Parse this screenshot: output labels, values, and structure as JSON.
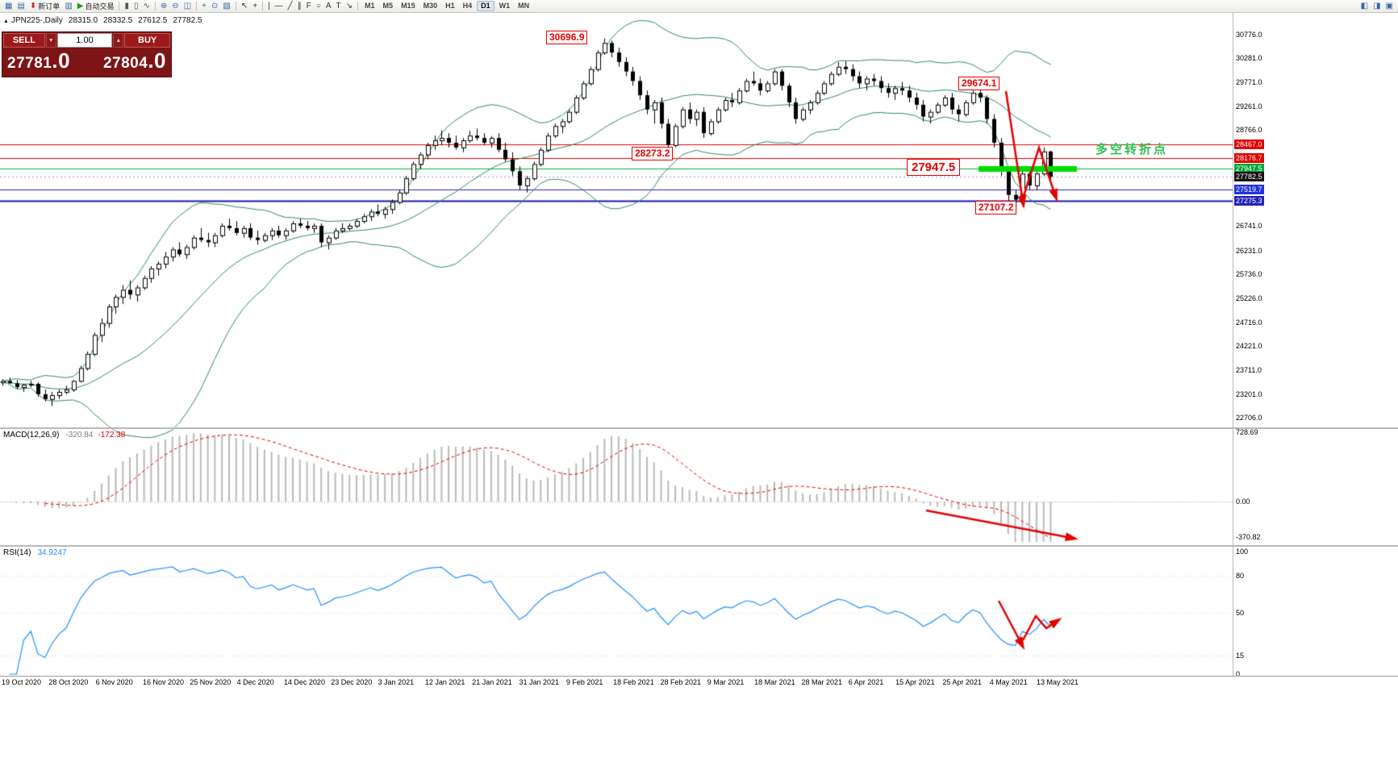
{
  "header": {
    "icon": "▲",
    "symbol": "JPN225-,Daily",
    "open": "28315.0",
    "high": "28332.5",
    "low": "27612.5",
    "close": "27782.5"
  },
  "trade": {
    "sell_label": "SELL",
    "buy_label": "BUY",
    "volume": "1.00",
    "vol_down_glyph": "▼",
    "vol_up_glyph": "▲",
    "sell_price_int": "27781",
    "sell_price_frac": ".0",
    "buy_price_int": "27804",
    "buy_price_frac": ".0"
  },
  "annotations": {
    "peak": "30696.9",
    "swing_high": "29674.1",
    "support": "28273.2",
    "key_level": "27947.5",
    "crash_low": "27107.2",
    "turning_point": "多空转折点"
  },
  "macd_label": {
    "name": "MACD(12,26,9)",
    "main": "-320.84",
    "signal": "-172.38"
  },
  "rsi_label": {
    "name": "RSI(14)",
    "value": "34.9247"
  },
  "toolbar": {
    "left_items": [
      {
        "name": "chart-window-icon",
        "glyph": "▦",
        "color": "#3566a8"
      },
      {
        "name": "market-watch-icon",
        "glyph": "▤",
        "color": "#3566a8"
      },
      {
        "name": "new-order-button",
        "glyph": "⬍",
        "color": "#c03030",
        "label": "新订单"
      },
      {
        "name": "chart-list-icon",
        "glyph": "▥",
        "color": "#3566a8"
      },
      {
        "name": "autotrade-button",
        "glyph": "▶",
        "color": "#1c9c1c",
        "label": "自动交易"
      },
      {
        "name": "sep"
      },
      {
        "name": "bar-chart-mode-icon",
        "glyph": "▮",
        "color": "#555"
      },
      {
        "name": "candlestick-mode-icon",
        "glyph": "▯",
        "color": "#555"
      },
      {
        "name": "line-chart-mode-icon",
        "glyph": "∿",
        "color": "#555"
      },
      {
        "name": "sep"
      },
      {
        "name": "zoom-in-icon",
        "glyph": "⊕",
        "color": "#3566a8"
      },
      {
        "name": "zoom-out-icon",
        "glyph": "⊖",
        "color": "#3566a8"
      },
      {
        "name": "tile-windows-icon",
        "glyph": "◫",
        "color": "#3566a8"
      },
      {
        "name": "sep"
      },
      {
        "name": "indicators-add-icon",
        "glyph": "+",
        "color": "#1c9c1c"
      },
      {
        "name": "periods-icon",
        "glyph": "⊙",
        "color": "#3566a8"
      },
      {
        "name": "templates-icon",
        "glyph": "▧",
        "color": "#3566a8"
      },
      {
        "name": "sep"
      },
      {
        "name": "cursor-icon",
        "glyph": "↖",
        "color": "#333"
      },
      {
        "name": "crosshair-icon",
        "glyph": "+",
        "color": "#333"
      },
      {
        "name": "sep"
      },
      {
        "name": "vertical-line-icon",
        "glyph": "|",
        "color": "#333"
      },
      {
        "name": "horizontal-line-icon",
        "glyph": "—",
        "color": "#333"
      },
      {
        "name": "trendline-icon",
        "glyph": "╱",
        "color": "#333"
      },
      {
        "name": "channel-icon",
        "glyph": "∥",
        "color": "#333"
      },
      {
        "name": "fibonacci-icon",
        "glyph": "F",
        "color": "#333"
      },
      {
        "name": "shapes-icon",
        "glyph": "○",
        "color": "#333"
      },
      {
        "name": "text-icon",
        "glyph": "A",
        "color": "#333"
      },
      {
        "name": "label-icon",
        "glyph": "T",
        "color": "#333"
      },
      {
        "name": "arrows-icon",
        "glyph": "↘",
        "color": "#333"
      },
      {
        "name": "sep"
      }
    ],
    "timeframes": [
      "M1",
      "M5",
      "M15",
      "M30",
      "H1",
      "H4",
      "D1",
      "W1",
      "MN"
    ],
    "active_timeframe": "D1",
    "right_items": [
      {
        "name": "dock-left-icon",
        "glyph": "◧",
        "color": "#3566a8"
      },
      {
        "name": "dock-right-icon",
        "glyph": "◨",
        "color": "#3566a8"
      },
      {
        "name": "help-icon",
        "glyph": "▣",
        "color": "#3566a8"
      }
    ]
  },
  "chart_data": {
    "type": "candlestick",
    "title": "JPN225- Daily",
    "x_labels": [
      "19 Oct 2020",
      "28 Oct 2020",
      "6 Nov 2020",
      "16 Nov 2020",
      "25 Nov 2020",
      "4 Dec 2020",
      "14 Dec 2020",
      "23 Dec 2020",
      "3 Jan 2021",
      "12 Jan 2021",
      "21 Jan 2021",
      "31 Jan 2021",
      "9 Feb 2021",
      "18 Feb 2021",
      "28 Feb 2021",
      "9 Mar 2021",
      "18 Mar 2021",
      "28 Mar 2021",
      "6 Apr 2021",
      "15 Apr 2021",
      "25 Apr 2021",
      "4 May 2021",
      "13 May 2021"
    ],
    "y_ticks": [
      30776.0,
      30281.0,
      29771.0,
      29261.0,
      28766.0,
      26741.0,
      26231.0,
      25736.0,
      25226.0,
      24716.0,
      24221.0,
      23711.0,
      23201.0,
      22706.0
    ],
    "levels": [
      {
        "price": 28467.0,
        "color": "#e80000",
        "width": 1,
        "badge_bg": "#e00000"
      },
      {
        "price": 28176.7,
        "color": "#e80000",
        "width": 1,
        "badge_bg": "#e00000"
      },
      {
        "price": 27947.5,
        "color": "#00b23c",
        "width": 1,
        "badge_bg": "#00a838"
      },
      {
        "price": 27519.7,
        "color": "#2222e0",
        "width": 1,
        "badge_bg": "#2233dd"
      },
      {
        "price": 27275.3,
        "color": "#1a1aa0",
        "width": 2,
        "badge_bg": "#2222b8"
      }
    ],
    "current_bid": {
      "price": 27782.5,
      "badge_bg": "#111111",
      "line_color": "#999999"
    },
    "highlight": {
      "x": 1213,
      "y_price": 27947.5,
      "width": 122,
      "height": 7,
      "color": "#00dd00"
    },
    "bollinger": {
      "period": 20,
      "deviation": 2,
      "color": "#2e8b57"
    },
    "macd": {
      "params": [
        12,
        26,
        9
      ],
      "main_display": -320.84,
      "signal_display": -172.38,
      "y_ticks": [
        728.69,
        0,
        -370.82
      ]
    },
    "rsi": {
      "period": 14,
      "display": 34.9247,
      "y_ticks": [
        100,
        80,
        50,
        15,
        0
      ],
      "levels": [
        80,
        50,
        15
      ]
    },
    "drawings": [
      {
        "name": "crash-arrow-1",
        "points": [
          [
            1247,
            113
          ],
          [
            1268,
            250
          ]
        ]
      },
      {
        "name": "crash-arrow-2",
        "points": [
          [
            1268,
            246
          ],
          [
            1288,
            183
          ],
          [
            1308,
            242
          ]
        ]
      },
      {
        "name": "macd-trend-arrow",
        "points": [
          [
            1148,
            633
          ],
          [
            1328,
            667
          ]
        ]
      },
      {
        "name": "rsi-arrow-1",
        "points": [
          [
            1238,
            745
          ],
          [
            1266,
            798
          ]
        ]
      },
      {
        "name": "rsi-arrow-2",
        "points": [
          [
            1268,
            794
          ],
          [
            1284,
            764
          ],
          [
            1297,
            779
          ],
          [
            1309,
            771
          ]
        ]
      }
    ],
    "ohlc": [
      [
        23450,
        23520,
        23380,
        23480
      ],
      [
        23480,
        23550,
        23420,
        23430
      ],
      [
        23430,
        23500,
        23300,
        23350
      ],
      [
        23350,
        23420,
        23250,
        23400
      ],
      [
        23400,
        23480,
        23350,
        23420
      ],
      [
        23420,
        23450,
        23150,
        23200
      ],
      [
        23200,
        23300,
        23050,
        23100
      ],
      [
        23100,
        23250,
        22950,
        23180
      ],
      [
        23180,
        23300,
        23100,
        23250
      ],
      [
        23250,
        23380,
        23200,
        23300
      ],
      [
        23300,
        23500,
        23250,
        23480
      ],
      [
        23480,
        23800,
        23450,
        23750
      ],
      [
        23750,
        24100,
        23700,
        24050
      ],
      [
        24050,
        24500,
        24000,
        24450
      ],
      [
        24450,
        24800,
        24300,
        24700
      ],
      [
        24700,
        25100,
        24600,
        25050
      ],
      [
        25050,
        25300,
        24900,
        25250
      ],
      [
        25250,
        25500,
        25100,
        25400
      ],
      [
        25400,
        25600,
        25200,
        25300
      ],
      [
        25300,
        25500,
        25150,
        25450
      ],
      [
        25450,
        25700,
        25400,
        25650
      ],
      [
        25650,
        25900,
        25550,
        25850
      ],
      [
        25850,
        26000,
        25700,
        25950
      ],
      [
        25950,
        26200,
        25850,
        26100
      ],
      [
        26100,
        26300,
        26000,
        26250
      ],
      [
        26250,
        26400,
        26100,
        26150
      ],
      [
        26150,
        26350,
        26050,
        26300
      ],
      [
        26300,
        26550,
        26250,
        26500
      ],
      [
        26500,
        26700,
        26400,
        26450
      ],
      [
        26450,
        26600,
        26300,
        26400
      ],
      [
        26400,
        26600,
        26300,
        26550
      ],
      [
        26550,
        26800,
        26500,
        26750
      ],
      [
        26750,
        26900,
        26650,
        26700
      ],
      [
        26700,
        26850,
        26550,
        26600
      ],
      [
        26600,
        26750,
        26500,
        26700
      ],
      [
        26700,
        26800,
        26450,
        26500
      ],
      [
        26500,
        26650,
        26350,
        26450
      ],
      [
        26450,
        26600,
        26400,
        26550
      ],
      [
        26550,
        26700,
        26450,
        26650
      ],
      [
        26650,
        26750,
        26500,
        26550
      ],
      [
        26550,
        26700,
        26450,
        26650
      ],
      [
        26650,
        26850,
        26600,
        26800
      ],
      [
        26800,
        26900,
        26700,
        26750
      ],
      [
        26750,
        26850,
        26650,
        26700
      ],
      [
        26700,
        26800,
        26600,
        26750
      ],
      [
        26750,
        26800,
        26300,
        26400
      ],
      [
        26400,
        26550,
        26250,
        26500
      ],
      [
        26500,
        26700,
        26450,
        26650
      ],
      [
        26650,
        26800,
        26600,
        26700
      ],
      [
        26700,
        26800,
        26650,
        26750
      ],
      [
        26750,
        26900,
        26700,
        26850
      ],
      [
        26850,
        27000,
        26800,
        26950
      ],
      [
        26950,
        27100,
        26850,
        27050
      ],
      [
        27050,
        27200,
        26950,
        27000
      ],
      [
        27000,
        27150,
        26900,
        27100
      ],
      [
        27100,
        27300,
        27000,
        27250
      ],
      [
        27250,
        27500,
        27200,
        27450
      ],
      [
        27450,
        27800,
        27400,
        27750
      ],
      [
        27750,
        28100,
        27700,
        28050
      ],
      [
        28050,
        28300,
        27950,
        28250
      ],
      [
        28250,
        28500,
        28150,
        28450
      ],
      [
        28450,
        28650,
        28350,
        28550
      ],
      [
        28550,
        28760,
        28450,
        28600
      ],
      [
        28600,
        28700,
        28400,
        28500
      ],
      [
        28500,
        28650,
        28350,
        28400
      ],
      [
        28400,
        28600,
        28300,
        28550
      ],
      [
        28550,
        28750,
        28500,
        28650
      ],
      [
        28650,
        28800,
        28550,
        28600
      ],
      [
        28600,
        28700,
        28450,
        28500
      ],
      [
        28500,
        28640,
        28400,
        28600
      ],
      [
        28600,
        28700,
        28300,
        28350
      ],
      [
        28350,
        28500,
        28100,
        28150
      ],
      [
        28150,
        28300,
        27800,
        27900
      ],
      [
        27900,
        28000,
        27500,
        27600
      ],
      [
        27600,
        27800,
        27450,
        27750
      ],
      [
        27750,
        28100,
        27700,
        28050
      ],
      [
        28050,
        28400,
        28000,
        28350
      ],
      [
        28350,
        28700,
        28300,
        28650
      ],
      [
        28650,
        28900,
        28600,
        28850
      ],
      [
        28850,
        29000,
        28700,
        28950
      ],
      [
        28950,
        29200,
        28900,
        29150
      ],
      [
        29150,
        29500,
        29100,
        29450
      ],
      [
        29450,
        29800,
        29400,
        29750
      ],
      [
        29750,
        30100,
        29700,
        30050
      ],
      [
        30050,
        30450,
        30000,
        30400
      ],
      [
        30400,
        30696.9,
        30350,
        30600
      ],
      [
        30600,
        30650,
        30300,
        30400
      ],
      [
        30400,
        30500,
        30100,
        30200
      ],
      [
        30200,
        30300,
        29900,
        30000
      ],
      [
        30000,
        30100,
        29700,
        29800
      ],
      [
        29800,
        29900,
        29400,
        29500
      ],
      [
        29500,
        29600,
        29100,
        29200
      ],
      [
        29200,
        29400,
        28900,
        29350
      ],
      [
        29350,
        29450,
        28800,
        28900
      ],
      [
        28900,
        29000,
        28300,
        28450
      ],
      [
        28450,
        28900,
        28400,
        28850
      ],
      [
        28850,
        29250,
        28800,
        29200
      ],
      [
        29200,
        29350,
        28900,
        29000
      ],
      [
        29000,
        29200,
        28850,
        29150
      ],
      [
        29150,
        29250,
        28600,
        28700
      ],
      [
        28700,
        29000,
        28650,
        28950
      ],
      [
        28950,
        29250,
        28900,
        29200
      ],
      [
        29200,
        29450,
        29150,
        29400
      ],
      [
        29400,
        29550,
        29250,
        29350
      ],
      [
        29350,
        29650,
        29300,
        29600
      ],
      [
        29600,
        29850,
        29550,
        29800
      ],
      [
        29800,
        30000,
        29700,
        29750
      ],
      [
        29750,
        29850,
        29500,
        29600
      ],
      [
        29600,
        29800,
        29550,
        29750
      ],
      [
        29750,
        30050,
        29700,
        30000
      ],
      [
        30000,
        30050,
        29600,
        29700
      ],
      [
        29700,
        29750,
        29250,
        29350
      ],
      [
        29350,
        29450,
        28900,
        29000
      ],
      [
        29000,
        29250,
        28950,
        29200
      ],
      [
        29200,
        29400,
        29100,
        29350
      ],
      [
        29350,
        29600,
        29300,
        29550
      ],
      [
        29550,
        29800,
        29500,
        29750
      ],
      [
        29750,
        30000,
        29700,
        29950
      ],
      [
        29950,
        30200,
        29900,
        30100
      ],
      [
        30100,
        30220,
        29950,
        30050
      ],
      [
        30050,
        30150,
        29800,
        29900
      ],
      [
        29900,
        30000,
        29650,
        29750
      ],
      [
        29750,
        29900,
        29600,
        29850
      ],
      [
        29850,
        29950,
        29700,
        29800
      ],
      [
        29800,
        29900,
        29550,
        29650
      ],
      [
        29650,
        29750,
        29450,
        29550
      ],
      [
        29550,
        29700,
        29400,
        29650
      ],
      [
        29650,
        29780,
        29500,
        29600
      ],
      [
        29600,
        29700,
        29350,
        29450
      ],
      [
        29450,
        29550,
        29200,
        29300
      ],
      [
        29300,
        29400,
        28950,
        29050
      ],
      [
        29050,
        29200,
        28900,
        29150
      ],
      [
        29150,
        29350,
        29100,
        29300
      ],
      [
        29300,
        29500,
        29250,
        29450
      ],
      [
        29450,
        29550,
        29100,
        29200
      ],
      [
        29200,
        29300,
        28950,
        29100
      ],
      [
        29100,
        29400,
        29050,
        29350
      ],
      [
        29350,
        29600,
        29300,
        29550
      ],
      [
        29550,
        29674.1,
        29350,
        29450
      ],
      [
        29450,
        29500,
        28900,
        29000
      ],
      [
        29000,
        29100,
        28400,
        28500
      ],
      [
        28500,
        28600,
        27800,
        27900
      ],
      [
        27900,
        28000,
        27250,
        27400
      ],
      [
        27400,
        27500,
        27107.2,
        27300
      ],
      [
        27300,
        27950,
        27250,
        27850
      ],
      [
        27850,
        27947.5,
        27500,
        27600
      ],
      [
        27600,
        27900,
        27500,
        27850
      ],
      [
        27850,
        28400,
        27800,
        28315
      ],
      [
        28315,
        28332.5,
        27612.5,
        27782.5
      ]
    ]
  }
}
